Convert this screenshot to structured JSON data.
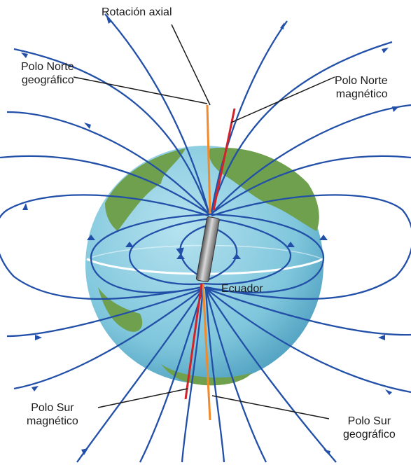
{
  "labels": {
    "axial_rotation": "Rotación axial",
    "geographic_north": [
      "Polo Norte",
      "geográfico"
    ],
    "magnetic_north": [
      "Polo Norte",
      "magnético"
    ],
    "equator": "Ecuador",
    "magnetic_south": [
      "Polo Sur",
      "magnético"
    ],
    "geographic_south": [
      "Polo Sur",
      "geográfico"
    ]
  },
  "colors": {
    "field_lines": "#2250a8",
    "geographic_axis": "#f08a2a",
    "magnetic_axis": "#d2232a",
    "ocean": "#7fc6dc",
    "land": "#6fa04d",
    "equator": "#ffffff",
    "leader_lines": "#1a1a1a"
  },
  "icons": [
    "globe-icon",
    "bar-magnet-icon",
    "field-line-arrow-icon"
  ]
}
